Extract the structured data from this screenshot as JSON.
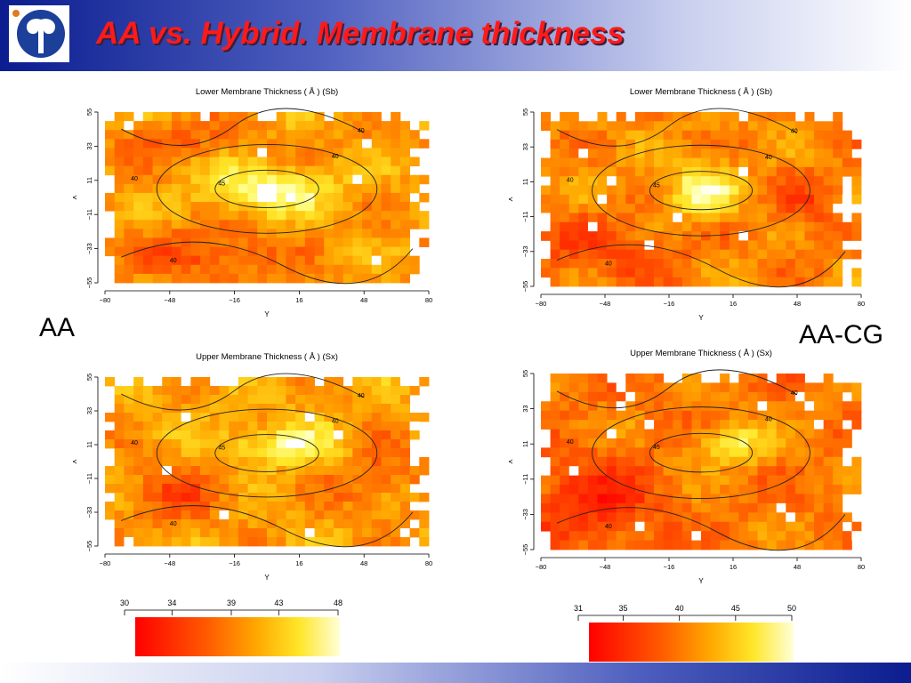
{
  "slide": {
    "title": "AA vs. Hybrid.  Membrane thickness",
    "label_left": "AA",
    "label_right": "AA-CG"
  },
  "colors": {
    "title_red": "#ff1a1a",
    "band_blue": "#0b1d8f",
    "logo_blue": "#1c3f9a",
    "scale_low": "#ff0000",
    "scale_high": "#ffffb0"
  },
  "icons": [
    "university-logo-icon"
  ],
  "chart_data": [
    {
      "type": "heatmap",
      "title": "Lower Membrane Thickness ( Å ) (Sb)",
      "xlabel": "Y",
      "ylabel": "X",
      "xticks": [
        "−80",
        "−48",
        "−16",
        "16",
        "48",
        "80"
      ],
      "yticks": [
        "55",
        "33",
        "11",
        "−11",
        "−33",
        "−55"
      ],
      "contour_labels": [
        "40",
        "45"
      ],
      "color_scale": [
        30,
        48
      ],
      "pattern": "lower"
    },
    {
      "type": "heatmap",
      "title": "Upper Membrane Thickness ( Å ) (Sx)",
      "xlabel": "Y",
      "ylabel": "X",
      "xticks": [
        "−80",
        "−48",
        "−16",
        "16",
        "48",
        "80"
      ],
      "yticks": [
        "55",
        "33",
        "11",
        "−11",
        "−33",
        "−55"
      ],
      "contour_labels": [
        "40",
        "45"
      ],
      "color_scale": [
        30,
        48
      ],
      "pattern": "upper"
    },
    {
      "type": "heatmap",
      "title": "Lower Membrane Thickness ( Å ) (Sb)",
      "xlabel": "Y",
      "ylabel": "X",
      "xticks": [
        "−80",
        "−48",
        "−16",
        "16",
        "48",
        "80"
      ],
      "yticks": [
        "55",
        "33",
        "11",
        "−11",
        "−33",
        "−55"
      ],
      "contour_labels": [
        "40",
        "45"
      ],
      "color_scale": [
        31,
        50
      ],
      "pattern": "lower_cg"
    },
    {
      "type": "heatmap",
      "title": "Upper Membrane Thickness ( Å ) (Sx)",
      "xlabel": "Y",
      "ylabel": "X",
      "xticks": [
        "−80",
        "−48",
        "−16",
        "16",
        "48",
        "80"
      ],
      "yticks": [
        "55",
        "33",
        "11",
        "−11",
        "−33",
        "−55"
      ],
      "contour_labels": [
        "40",
        "45"
      ],
      "color_scale": [
        31,
        50
      ],
      "pattern": "upper_cg"
    }
  ],
  "colorbars": [
    {
      "ticks": [
        "30",
        "34",
        "39",
        "43",
        "48"
      ],
      "values": [
        30,
        34,
        39,
        43,
        48
      ],
      "min": 30,
      "max": 48
    },
    {
      "ticks": [
        "31",
        "35",
        "40",
        "45",
        "50"
      ],
      "values": [
        31,
        35,
        40,
        45,
        50
      ],
      "min": 31,
      "max": 50
    }
  ]
}
